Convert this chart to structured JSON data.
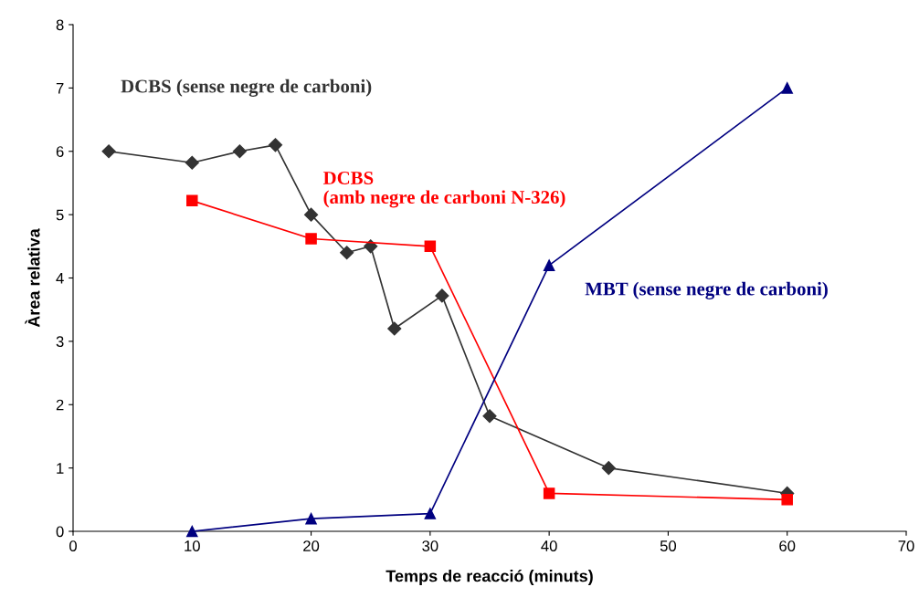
{
  "chart_data": {
    "type": "line",
    "xlabel": "Temps de reacció (minuts)",
    "ylabel": "Àrea relativa",
    "xlim": [
      0,
      70
    ],
    "xticks": [
      0,
      10,
      20,
      30,
      40,
      50,
      60,
      70
    ],
    "ylim": [
      0,
      8
    ],
    "yticks": [
      0,
      1,
      2,
      3,
      4,
      5,
      6,
      7,
      8
    ],
    "grid": false,
    "legend": false,
    "series": [
      {
        "name": "DCBS (sense negre de carboni)",
        "color": "#333333",
        "marker": "diamond",
        "x": [
          3,
          10,
          14,
          17,
          20,
          23,
          25,
          27,
          31,
          35,
          45,
          60
        ],
        "values": [
          6.0,
          5.82,
          6.0,
          6.1,
          5.0,
          4.4,
          4.5,
          3.2,
          3.72,
          1.82,
          1.0,
          0.6
        ]
      },
      {
        "name": "DCBS\n(amb negre de carboni N-326)",
        "color": "#ff0000",
        "marker": "square",
        "x": [
          10,
          20,
          30,
          40,
          60
        ],
        "values": [
          5.22,
          4.62,
          4.5,
          0.6,
          0.5
        ]
      },
      {
        "name": "MBT (sense negre de carboni)",
        "color": "#000080",
        "marker": "triangle",
        "x": [
          10,
          20,
          30,
          40,
          60
        ],
        "values": [
          0.0,
          0.2,
          0.28,
          4.2,
          7.0
        ]
      }
    ]
  }
}
